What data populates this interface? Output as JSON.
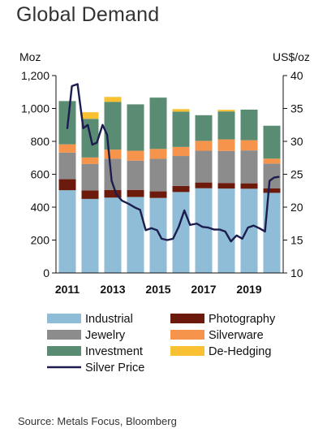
{
  "title": "Global Demand",
  "source": "Source: Metals Focus, Bloomberg",
  "chart_data": {
    "type": "bar",
    "stacked": true,
    "left_unit": "Moz",
    "right_unit": "US$/oz",
    "y_left": {
      "min": 0,
      "max": 1200,
      "ticks": [
        "0",
        "200",
        "400",
        "600",
        "800",
        "1,000",
        "1,200"
      ],
      "tick_values": [
        0,
        200,
        400,
        600,
        800,
        1000,
        1200
      ]
    },
    "y_right": {
      "min": 10,
      "max": 40,
      "ticks": [
        "10",
        "15",
        "20",
        "25",
        "30",
        "35",
        "40"
      ],
      "tick_values": [
        10,
        15,
        20,
        25,
        30,
        35,
        40
      ]
    },
    "x_labels": [
      {
        "label": "2011",
        "category_index": 0
      },
      {
        "label": "2013",
        "category_index": 2
      },
      {
        "label": "2015",
        "category_index": 4
      },
      {
        "label": "2017",
        "category_index": 6
      },
      {
        "label": "2019",
        "category_index": 8
      }
    ],
    "categories": [
      "2011",
      "2012",
      "2013",
      "2014",
      "2015",
      "2016",
      "2017",
      "2018",
      "2019",
      "2020"
    ],
    "series": [
      {
        "name": "Industrial",
        "color": "#8fbcd6",
        "values": [
          503,
          450,
          458,
          462,
          456,
          492,
          515,
          513,
          512,
          487
        ]
      },
      {
        "name": "Photography",
        "color": "#6b1a0c",
        "values": [
          67,
          52,
          47,
          43,
          40,
          37,
          35,
          34,
          33,
          28
        ]
      },
      {
        "name": "Jewelry",
        "color": "#8c8c8c",
        "values": [
          162,
          160,
          190,
          178,
          198,
          182,
          193,
          195,
          200,
          150
        ]
      },
      {
        "name": "Silverware",
        "color": "#f5944a",
        "values": [
          50,
          40,
          55,
          60,
          60,
          55,
          60,
          70,
          62,
          30
        ]
      },
      {
        "name": "Investment",
        "color": "#5a8c74",
        "values": [
          263,
          235,
          290,
          282,
          312,
          215,
          156,
          170,
          186,
          200
        ]
      },
      {
        "name": "De-Hedging",
        "color": "#f9c031",
        "values": [
          0,
          40,
          30,
          0,
          0,
          15,
          0,
          10,
          0,
          0
        ]
      }
    ],
    "line_series": {
      "name": "Silver Price",
      "color": "#1c1d4e",
      "axis": "right",
      "points": [
        [
          0.0,
          32.0
        ],
        [
          0.2,
          38.4
        ],
        [
          0.45,
          38.7
        ],
        [
          0.7,
          32.0
        ],
        [
          0.9,
          32.5
        ],
        [
          1.1,
          29.5
        ],
        [
          1.3,
          29.8
        ],
        [
          1.55,
          32.5
        ],
        [
          1.75,
          31.0
        ],
        [
          1.95,
          24.0
        ],
        [
          2.15,
          22.0
        ],
        [
          2.4,
          21.0
        ],
        [
          2.7,
          20.5
        ],
        [
          3.0,
          19.9
        ],
        [
          3.2,
          19.6
        ],
        [
          3.45,
          16.5
        ],
        [
          3.7,
          16.8
        ],
        [
          3.95,
          16.5
        ],
        [
          4.15,
          15.2
        ],
        [
          4.4,
          15.0
        ],
        [
          4.65,
          15.2
        ],
        [
          4.9,
          17.0
        ],
        [
          5.15,
          19.5
        ],
        [
          5.4,
          17.3
        ],
        [
          5.7,
          17.5
        ],
        [
          5.95,
          17.0
        ],
        [
          6.2,
          16.9
        ],
        [
          6.45,
          16.6
        ],
        [
          6.7,
          16.6
        ],
        [
          6.95,
          16.3
        ],
        [
          7.2,
          14.8
        ],
        [
          7.45,
          15.7
        ],
        [
          7.7,
          15.2
        ],
        [
          7.95,
          16.9
        ],
        [
          8.2,
          17.2
        ],
        [
          8.45,
          16.8
        ],
        [
          8.7,
          16.3
        ],
        [
          8.9,
          24.0
        ],
        [
          9.1,
          24.5
        ],
        [
          9.3,
          24.6
        ]
      ]
    },
    "legend": {
      "placement": "bottom",
      "items": [
        {
          "label": "Industrial",
          "kind": "box",
          "color": "#8fbcd6"
        },
        {
          "label": "Photography",
          "kind": "box",
          "color": "#6b1a0c"
        },
        {
          "label": "Jewelry",
          "kind": "box",
          "color": "#8c8c8c"
        },
        {
          "label": "Silverware",
          "kind": "box",
          "color": "#f5944a"
        },
        {
          "label": "Investment",
          "kind": "box",
          "color": "#5a8c74"
        },
        {
          "label": "De-Hedging",
          "kind": "box",
          "color": "#f9c031"
        },
        {
          "label": "Silver Price",
          "kind": "line",
          "color": "#1c1d4e"
        }
      ]
    }
  }
}
